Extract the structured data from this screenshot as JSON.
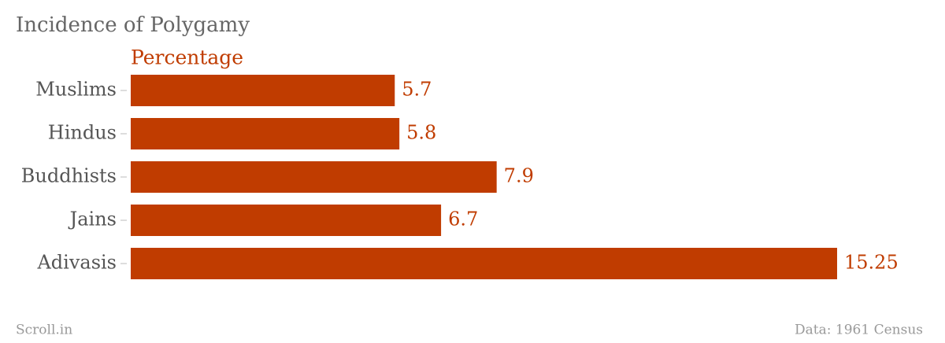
{
  "chart_data": {
    "type": "bar",
    "orientation": "horizontal",
    "title": "Incidence of Polygamy",
    "subtitle": "Percentage",
    "categories": [
      "Muslims",
      "Hindus",
      "Buddhists",
      "Jains",
      "Adivasis"
    ],
    "values": [
      5.7,
      5.8,
      7.9,
      6.7,
      15.25
    ],
    "color": "#c03c00",
    "footer_left": "Scroll.in",
    "footer_right": "Data: 1961 Census"
  }
}
